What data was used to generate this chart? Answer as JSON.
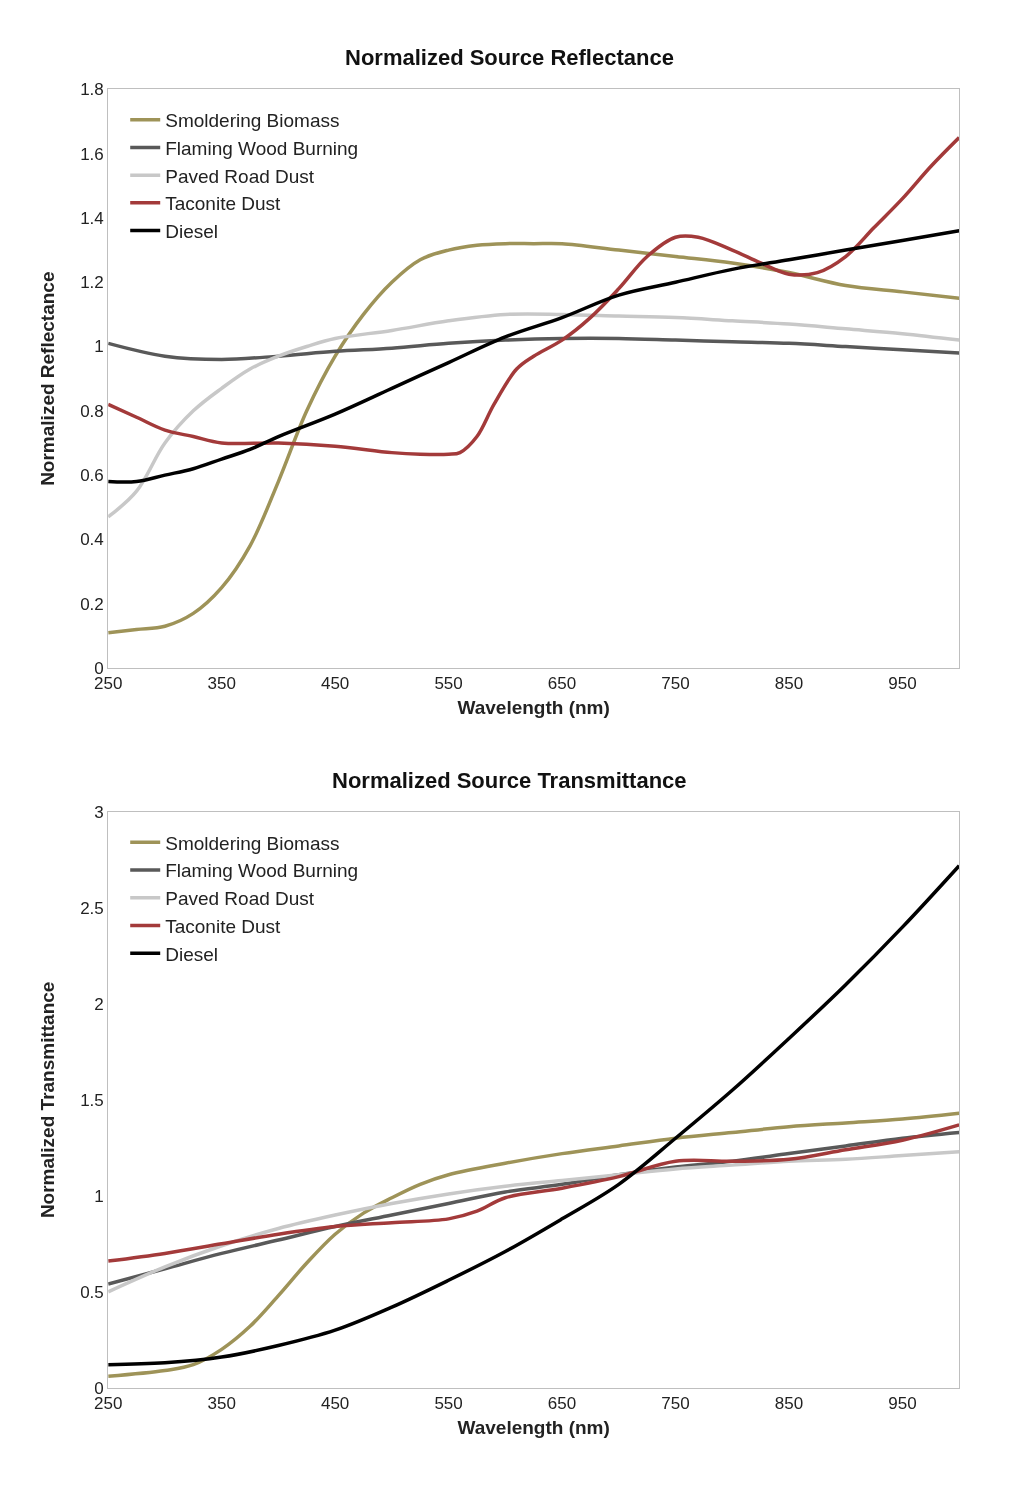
{
  "chart_data": [
    {
      "type": "line",
      "title": "Normalized Source Reflectance",
      "xlabel": "Wavelength (nm)",
      "ylabel": "Normalized Reflectance",
      "xlim": [
        250,
        1000
      ],
      "xticks": [
        250,
        350,
        450,
        550,
        650,
        750,
        850,
        950
      ],
      "ylim": [
        0,
        1.8
      ],
      "yticks": [
        0,
        0.2,
        0.4,
        0.6,
        0.8,
        1,
        1.2,
        1.4,
        1.6,
        1.8
      ],
      "legend": "top left",
      "marker": "none",
      "line_style": "solid",
      "series": [
        {
          "name": "Smoldering Biomass",
          "color": "#9e9358",
          "x": [
            250,
            275,
            300,
            325,
            350,
            375,
            400,
            425,
            450,
            475,
            500,
            525,
            550,
            575,
            600,
            625,
            650,
            700,
            750,
            800,
            850,
            900,
            950,
            1000
          ],
          "values": [
            0.11,
            0.12,
            0.13,
            0.17,
            0.25,
            0.38,
            0.58,
            0.8,
            0.97,
            1.1,
            1.2,
            1.27,
            1.3,
            1.315,
            1.32,
            1.32,
            1.32,
            1.3,
            1.28,
            1.26,
            1.23,
            1.19,
            1.17,
            1.15
          ]
        },
        {
          "name": "Flaming Wood Burning",
          "color": "#595959",
          "x": [
            250,
            300,
            350,
            400,
            450,
            500,
            550,
            600,
            650,
            700,
            750,
            800,
            850,
            900,
            950,
            1000
          ],
          "values": [
            1.01,
            0.97,
            0.96,
            0.97,
            0.985,
            0.995,
            1.01,
            1.02,
            1.025,
            1.025,
            1.02,
            1.015,
            1.01,
            1.0,
            0.99,
            0.98
          ]
        },
        {
          "name": "Paved Road Dust",
          "color": "#c8c8c8",
          "x": [
            250,
            275,
            300,
            325,
            350,
            375,
            400,
            425,
            450,
            500,
            550,
            600,
            650,
            700,
            750,
            800,
            850,
            900,
            950,
            1000
          ],
          "values": [
            0.47,
            0.55,
            0.7,
            0.8,
            0.87,
            0.93,
            0.97,
            1.0,
            1.025,
            1.05,
            1.08,
            1.1,
            1.1,
            1.095,
            1.09,
            1.08,
            1.07,
            1.055,
            1.04,
            1.02
          ]
        },
        {
          "name": "Taconite Dust",
          "color": "#a33a3a",
          "x": [
            250,
            275,
            300,
            325,
            350,
            400,
            450,
            500,
            525,
            550,
            560,
            575,
            590,
            610,
            625,
            650,
            675,
            700,
            725,
            750,
            770,
            800,
            825,
            850,
            875,
            900,
            925,
            950,
            975,
            1000
          ],
          "values": [
            0.82,
            0.78,
            0.74,
            0.72,
            0.7,
            0.7,
            0.69,
            0.67,
            0.665,
            0.665,
            0.67,
            0.72,
            0.82,
            0.93,
            0.97,
            1.02,
            1.09,
            1.18,
            1.28,
            1.34,
            1.34,
            1.3,
            1.26,
            1.225,
            1.23,
            1.28,
            1.37,
            1.46,
            1.56,
            1.65
          ]
        },
        {
          "name": "Diesel",
          "color": "#000000",
          "x": [
            250,
            275,
            300,
            325,
            350,
            375,
            400,
            450,
            500,
            550,
            600,
            650,
            700,
            750,
            800,
            850,
            900,
            950,
            1000
          ],
          "values": [
            0.58,
            0.58,
            0.6,
            0.62,
            0.65,
            0.68,
            0.72,
            0.79,
            0.87,
            0.95,
            1.03,
            1.09,
            1.16,
            1.2,
            1.24,
            1.27,
            1.3,
            1.33,
            1.36
          ]
        }
      ]
    },
    {
      "type": "line",
      "title": "Normalized Source Transmittance",
      "xlabel": "Wavelength (nm)",
      "ylabel": "Normalized Transmittance",
      "xlim": [
        250,
        1000
      ],
      "xticks": [
        250,
        350,
        450,
        550,
        650,
        750,
        850,
        950
      ],
      "ylim": [
        0,
        3
      ],
      "yticks": [
        0,
        0.5,
        1,
        1.5,
        2,
        2.5,
        3
      ],
      "legend": "top left",
      "marker": "none",
      "line_style": "solid",
      "series": [
        {
          "name": "Smoldering Biomass",
          "color": "#9e9358",
          "x": [
            250,
            300,
            325,
            350,
            375,
            400,
            425,
            450,
            475,
            500,
            525,
            550,
            600,
            650,
            700,
            750,
            800,
            850,
            900,
            950,
            1000
          ],
          "values": [
            0.06,
            0.09,
            0.12,
            0.2,
            0.32,
            0.48,
            0.65,
            0.8,
            0.91,
            0.99,
            1.06,
            1.11,
            1.17,
            1.22,
            1.26,
            1.3,
            1.33,
            1.36,
            1.38,
            1.4,
            1.43
          ]
        },
        {
          "name": "Flaming Wood Burning",
          "color": "#595959",
          "x": [
            250,
            300,
            350,
            400,
            450,
            500,
            550,
            600,
            650,
            700,
            750,
            800,
            850,
            900,
            950,
            1000
          ],
          "values": [
            0.54,
            0.62,
            0.7,
            0.77,
            0.84,
            0.9,
            0.96,
            1.02,
            1.06,
            1.11,
            1.15,
            1.18,
            1.22,
            1.26,
            1.3,
            1.33
          ]
        },
        {
          "name": "Paved Road Dust",
          "color": "#c8c8c8",
          "x": [
            250,
            300,
            350,
            400,
            450,
            500,
            550,
            600,
            650,
            700,
            750,
            800,
            850,
            900,
            950,
            1000
          ],
          "values": [
            0.5,
            0.63,
            0.74,
            0.83,
            0.9,
            0.96,
            1.01,
            1.05,
            1.08,
            1.11,
            1.14,
            1.16,
            1.18,
            1.19,
            1.21,
            1.23
          ]
        },
        {
          "name": "Taconite Dust",
          "color": "#a33a3a",
          "x": [
            250,
            300,
            350,
            400,
            450,
            500,
            550,
            575,
            600,
            650,
            700,
            750,
            800,
            850,
            900,
            950,
            1000
          ],
          "values": [
            0.66,
            0.7,
            0.75,
            0.8,
            0.84,
            0.86,
            0.88,
            0.92,
            0.99,
            1.04,
            1.1,
            1.18,
            1.18,
            1.19,
            1.24,
            1.29,
            1.37
          ]
        },
        {
          "name": "Diesel",
          "color": "#000000",
          "x": [
            250,
            300,
            350,
            400,
            450,
            500,
            550,
            600,
            650,
            700,
            750,
            800,
            850,
            900,
            950,
            1000
          ],
          "values": [
            0.12,
            0.13,
            0.16,
            0.22,
            0.3,
            0.42,
            0.56,
            0.71,
            0.88,
            1.06,
            1.3,
            1.55,
            1.82,
            2.1,
            2.4,
            2.72
          ]
        }
      ]
    }
  ]
}
